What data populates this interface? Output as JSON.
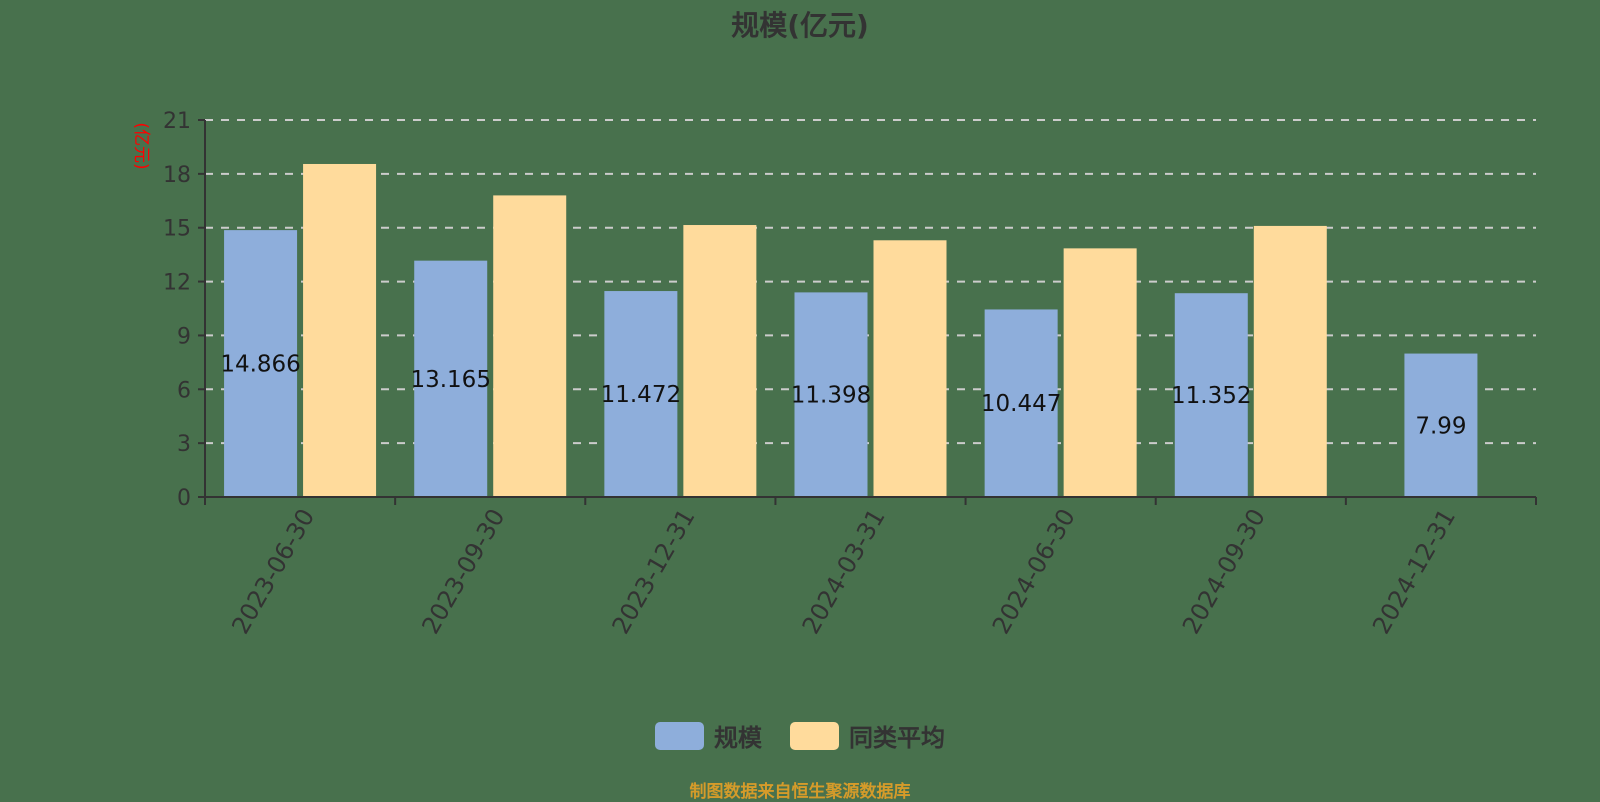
{
  "title": "规模(亿元)",
  "footer": "制图数据来自恒生聚源数据库",
  "colors": {
    "background": "#48714d",
    "series_scale": "#8eaedb",
    "series_peer_avg": "#ffdb9c",
    "axis": "#333333",
    "grid": "#cccccc",
    "ylabel": "#ff0000",
    "footer": "#d59b2a"
  },
  "legend": [
    {
      "name": "规模",
      "color": "#8eaedb"
    },
    {
      "name": "同类平均",
      "color": "#ffdb9c"
    }
  ],
  "chart_data": {
    "type": "bar",
    "title": "规模(亿元)",
    "xlabel": "",
    "ylabel": "(亿元)",
    "ylim": [
      0,
      21
    ],
    "yticks": [
      0,
      3,
      6,
      9,
      12,
      15,
      18,
      21
    ],
    "grid": true,
    "grid_style": "dashed",
    "legend_position": "bottom",
    "categories": [
      "2023-06-30",
      "2023-09-30",
      "2023-12-31",
      "2024-03-31",
      "2024-06-30",
      "2024-09-30",
      "2024-12-31"
    ],
    "series": [
      {
        "name": "规模",
        "values": [
          14.866,
          13.165,
          11.472,
          11.398,
          10.447,
          11.352,
          7.99
        ],
        "labels": [
          "14.866",
          "13.165",
          "11.472",
          "11.398",
          "10.447",
          "11.352",
          "7.99"
        ]
      },
      {
        "name": "同类平均",
        "values": [
          18.55,
          16.8,
          15.15,
          14.3,
          13.85,
          15.1,
          null
        ]
      }
    ]
  }
}
